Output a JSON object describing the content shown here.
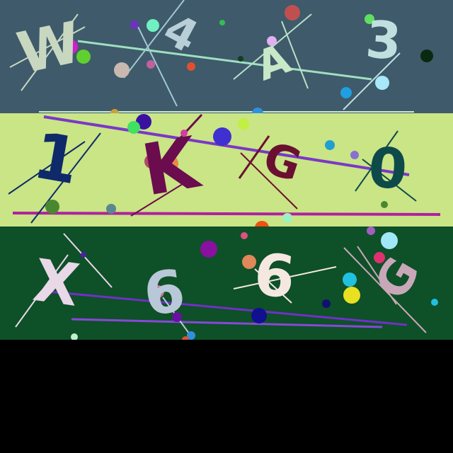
{
  "captcha": {
    "strips": [
      {
        "name": "captcha-strip-1",
        "background": "#3f5a6b",
        "characters": [
          {
            "text": "W",
            "color": "#c8d8c0",
            "rotate": -12
          },
          {
            "text": "4",
            "color": "#b8cfd8",
            "rotate": 28
          },
          {
            "text": "A",
            "color": "#c8e8c8",
            "rotate": -20
          },
          {
            "text": "3",
            "color": "#c0e0e0",
            "rotate": 4
          }
        ]
      },
      {
        "name": "captcha-strip-2",
        "background": "#c9e585",
        "characters": [
          {
            "text": "1",
            "color": "#0e2a6a",
            "rotate": 10
          },
          {
            "text": "K",
            "color": "#6a0c4e",
            "rotate": -10
          },
          {
            "text": "G",
            "color": "#6a1030",
            "rotate": 18
          },
          {
            "text": "0",
            "color": "#0e4a4a",
            "rotate": 4
          }
        ]
      },
      {
        "name": "captcha-strip-3",
        "background": "#0e5028",
        "characters": [
          {
            "text": "X",
            "color": "#e8d8e8",
            "rotate": 8
          },
          {
            "text": "6",
            "color": "#b8c8d8",
            "rotate": -8
          },
          {
            "text": "6",
            "color": "#f4e8e0",
            "rotate": 6
          },
          {
            "text": "G",
            "color": "#c8a8b8",
            "rotate": -60
          }
        ]
      }
    ]
  }
}
